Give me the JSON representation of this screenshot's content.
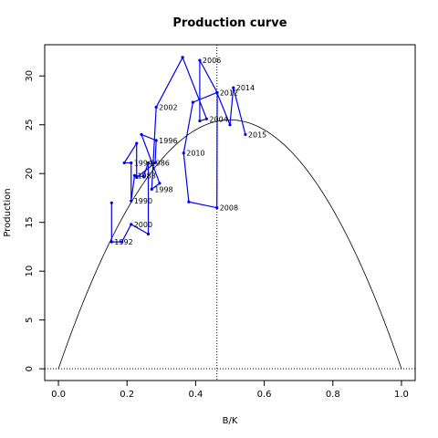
{
  "chart_data": {
    "type": "line",
    "title": "Production curve",
    "xlabel": "B/K",
    "ylabel": "Production",
    "xlim": [
      -0.04,
      1.04
    ],
    "ylim": [
      -1.2,
      33.2
    ],
    "x_ticks": [
      0.0,
      0.2,
      0.4,
      0.6,
      0.8,
      1.0
    ],
    "x_tick_labels": [
      "0.0",
      "0.2",
      "0.4",
      "0.6",
      "0.8",
      "1.0"
    ],
    "y_ticks": [
      0,
      5,
      10,
      15,
      20,
      25,
      30
    ],
    "y_tick_labels": [
      "0",
      "5",
      "10",
      "15",
      "20",
      "25",
      "30"
    ],
    "grid": false,
    "reference_lines": {
      "vertical_dotted_x": 0.462,
      "horizontal_dotted_y": 0
    },
    "production_curve": {
      "description_type": "parabola",
      "r": 1.0,
      "k": 1.0,
      "max_production": 25.5,
      "color": "#000000"
    },
    "series": [
      {
        "color": "#0000ee",
        "points": [
          {
            "x": 0.155,
            "y": 17.0,
            "label": ""
          },
          {
            "x": 0.155,
            "y": 13.0,
            "label": "1992"
          },
          {
            "x": 0.185,
            "y": 13.0,
            "label": ""
          },
          {
            "x": 0.212,
            "y": 14.8,
            "label": "2000"
          },
          {
            "x": 0.262,
            "y": 13.8,
            "label": ""
          },
          {
            "x": 0.262,
            "y": 21.1,
            "label": "1986"
          },
          {
            "x": 0.248,
            "y": 19.7,
            "label": ""
          },
          {
            "x": 0.222,
            "y": 19.8,
            "label": "1988"
          },
          {
            "x": 0.212,
            "y": 17.2,
            "label": "1990"
          },
          {
            "x": 0.212,
            "y": 21.1,
            "label": "1994"
          },
          {
            "x": 0.192,
            "y": 21.1,
            "label": ""
          },
          {
            "x": 0.228,
            "y": 23.1,
            "label": ""
          },
          {
            "x": 0.228,
            "y": 19.6,
            "label": ""
          },
          {
            "x": 0.282,
            "y": 21.1,
            "label": ""
          },
          {
            "x": 0.285,
            "y": 23.4,
            "label": "1996"
          },
          {
            "x": 0.242,
            "y": 24.0,
            "label": ""
          },
          {
            "x": 0.295,
            "y": 19.0,
            "label": ""
          },
          {
            "x": 0.272,
            "y": 18.4,
            "label": "1998"
          },
          {
            "x": 0.285,
            "y": 26.8,
            "label": "2002"
          },
          {
            "x": 0.362,
            "y": 31.9,
            "label": ""
          },
          {
            "x": 0.432,
            "y": 25.6,
            "label": "2004"
          },
          {
            "x": 0.412,
            "y": 25.4,
            "label": ""
          },
          {
            "x": 0.412,
            "y": 31.6,
            "label": "2006"
          },
          {
            "x": 0.463,
            "y": 28.3,
            "label": ""
          },
          {
            "x": 0.462,
            "y": 16.5,
            "label": "2008"
          },
          {
            "x": 0.38,
            "y": 17.1,
            "label": ""
          },
          {
            "x": 0.365,
            "y": 22.1,
            "label": "2010"
          },
          {
            "x": 0.392,
            "y": 27.3,
            "label": ""
          },
          {
            "x": 0.462,
            "y": 28.3,
            "label": "2012"
          },
          {
            "x": 0.5,
            "y": 25.0,
            "label": ""
          },
          {
            "x": 0.51,
            "y": 28.8,
            "label": "2014"
          },
          {
            "x": 0.545,
            "y": 24.0,
            "label": "2015"
          }
        ]
      }
    ]
  }
}
